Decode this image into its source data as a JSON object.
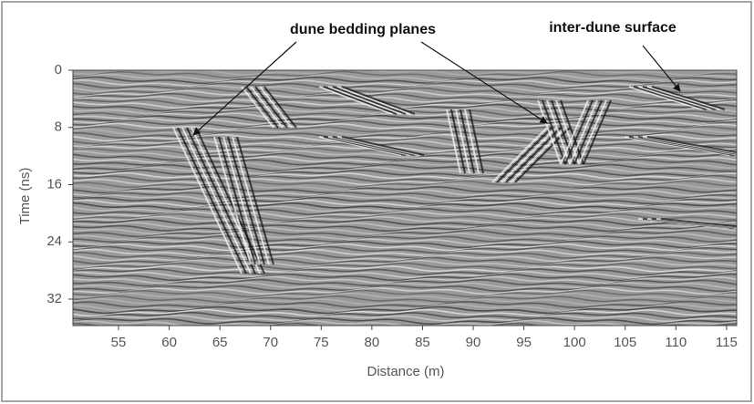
{
  "chart_data": {
    "type": "radargram",
    "xlabel": "Distance (m)",
    "ylabel": "Time (ns)",
    "xlim": [
      50.5,
      116
    ],
    "ylim": [
      0,
      35.7
    ],
    "xticks": [
      55,
      60,
      65,
      70,
      75,
      80,
      85,
      90,
      95,
      100,
      105,
      110,
      115
    ],
    "yticks": [
      0,
      8,
      16,
      24,
      32
    ],
    "annotations": [
      "dune bedding planes",
      "inter-dune surface"
    ]
  }
}
